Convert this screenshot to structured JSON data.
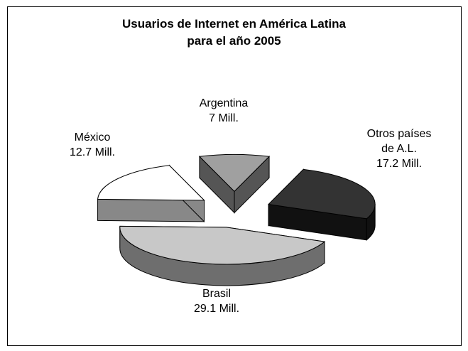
{
  "chart_data": {
    "type": "pie",
    "title": [
      "Usuarios de Internet en América Latina",
      "para el año 2005"
    ],
    "slices": [
      {
        "name": "Argentina",
        "value": 7,
        "label": "7 Mill.",
        "color": "#a0a0a0"
      },
      {
        "name": "Otros países de A.L.",
        "value": 17.2,
        "label": "17.2 Mill.",
        "color": "#333333"
      },
      {
        "name": "Brasil",
        "value": 29.1,
        "label": "29.1 Mill.",
        "color": "#c8c8c8"
      },
      {
        "name": "México",
        "value": 12.7,
        "label": "12.7 Mill.",
        "color": "#ffffff"
      }
    ],
    "style": "3d-exploded",
    "legend": "none"
  }
}
